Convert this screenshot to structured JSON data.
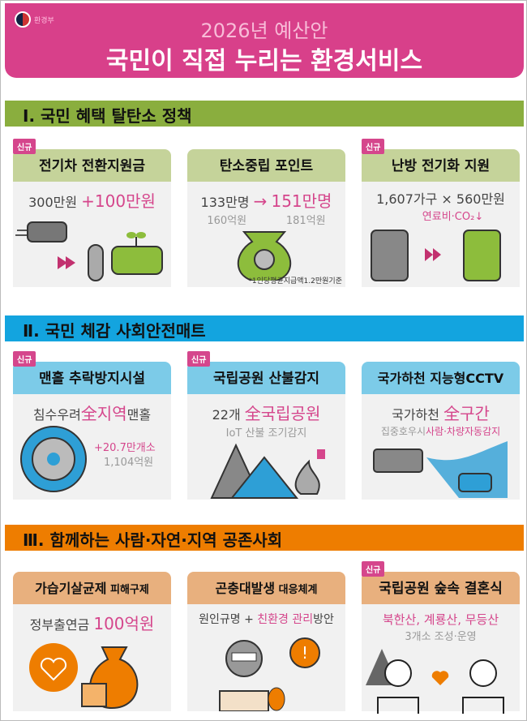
{
  "header": {
    "ministry": "환경부",
    "subtitle": "2026년 예산안",
    "title": "국민이 직접 누리는 환경서비스"
  },
  "badge": "신규",
  "sections": [
    {
      "title": "Ⅰ. 국민 혜택 탈탄소 정책",
      "color": "#8aae3e",
      "cards": [
        {
          "title": "전기차 전환지원금",
          "new": true,
          "a": "300만원 ",
          "b": "+100만원"
        },
        {
          "title": "탄소중립 포인트",
          "new": false,
          "a": "133만명",
          "arrow": "→",
          "b": "151만명",
          "c": "160억원",
          "d": "181억원",
          "note": "*1인당평균지급액1.2만원기준"
        },
        {
          "title": "난방 전기화 지원",
          "new": true,
          "a": "1,607가구 × 560만원",
          "b": "연료비·CO₂↓"
        }
      ]
    },
    {
      "title": "Ⅱ. 국민 체감 사회안전매트",
      "color": "#13a4df",
      "cards": [
        {
          "title": "맨홀 추락방지시설",
          "new": true,
          "a": "침수우려",
          "b": "全지역",
          "c": "맨홀",
          "d": "+20.7만개소",
          "e": "1,104억원"
        },
        {
          "title": "국립공원 산불감지",
          "new": true,
          "a": "22개 ",
          "b": "全국립공원",
          "c": "IoT 산불 조기감지"
        },
        {
          "title": "국가하천 지능형CCTV",
          "new": false,
          "a": "국가하천 ",
          "b": "全구간",
          "c": "집중호우시",
          "d": "사람·차량자동감지"
        }
      ]
    },
    {
      "title": "Ⅲ. 함께하는 사람·자연·지역 공존사회",
      "color": "#ee7d00",
      "cards": [
        {
          "title": "가습기살균제",
          "title2": " 피해구제",
          "new": false,
          "a": "정부출연금 ",
          "b": "100억원"
        },
        {
          "title": "곤충대발생",
          "title2": " 대응체계",
          "new": false,
          "a": "원인규명 + ",
          "b": "친환경 관리",
          "c": "방안"
        },
        {
          "title": "국립공원 숲속 결혼식",
          "new": true,
          "b": "북한산, 계룡산, 무등산",
          "c": "3개소 조성·운영"
        }
      ]
    }
  ]
}
